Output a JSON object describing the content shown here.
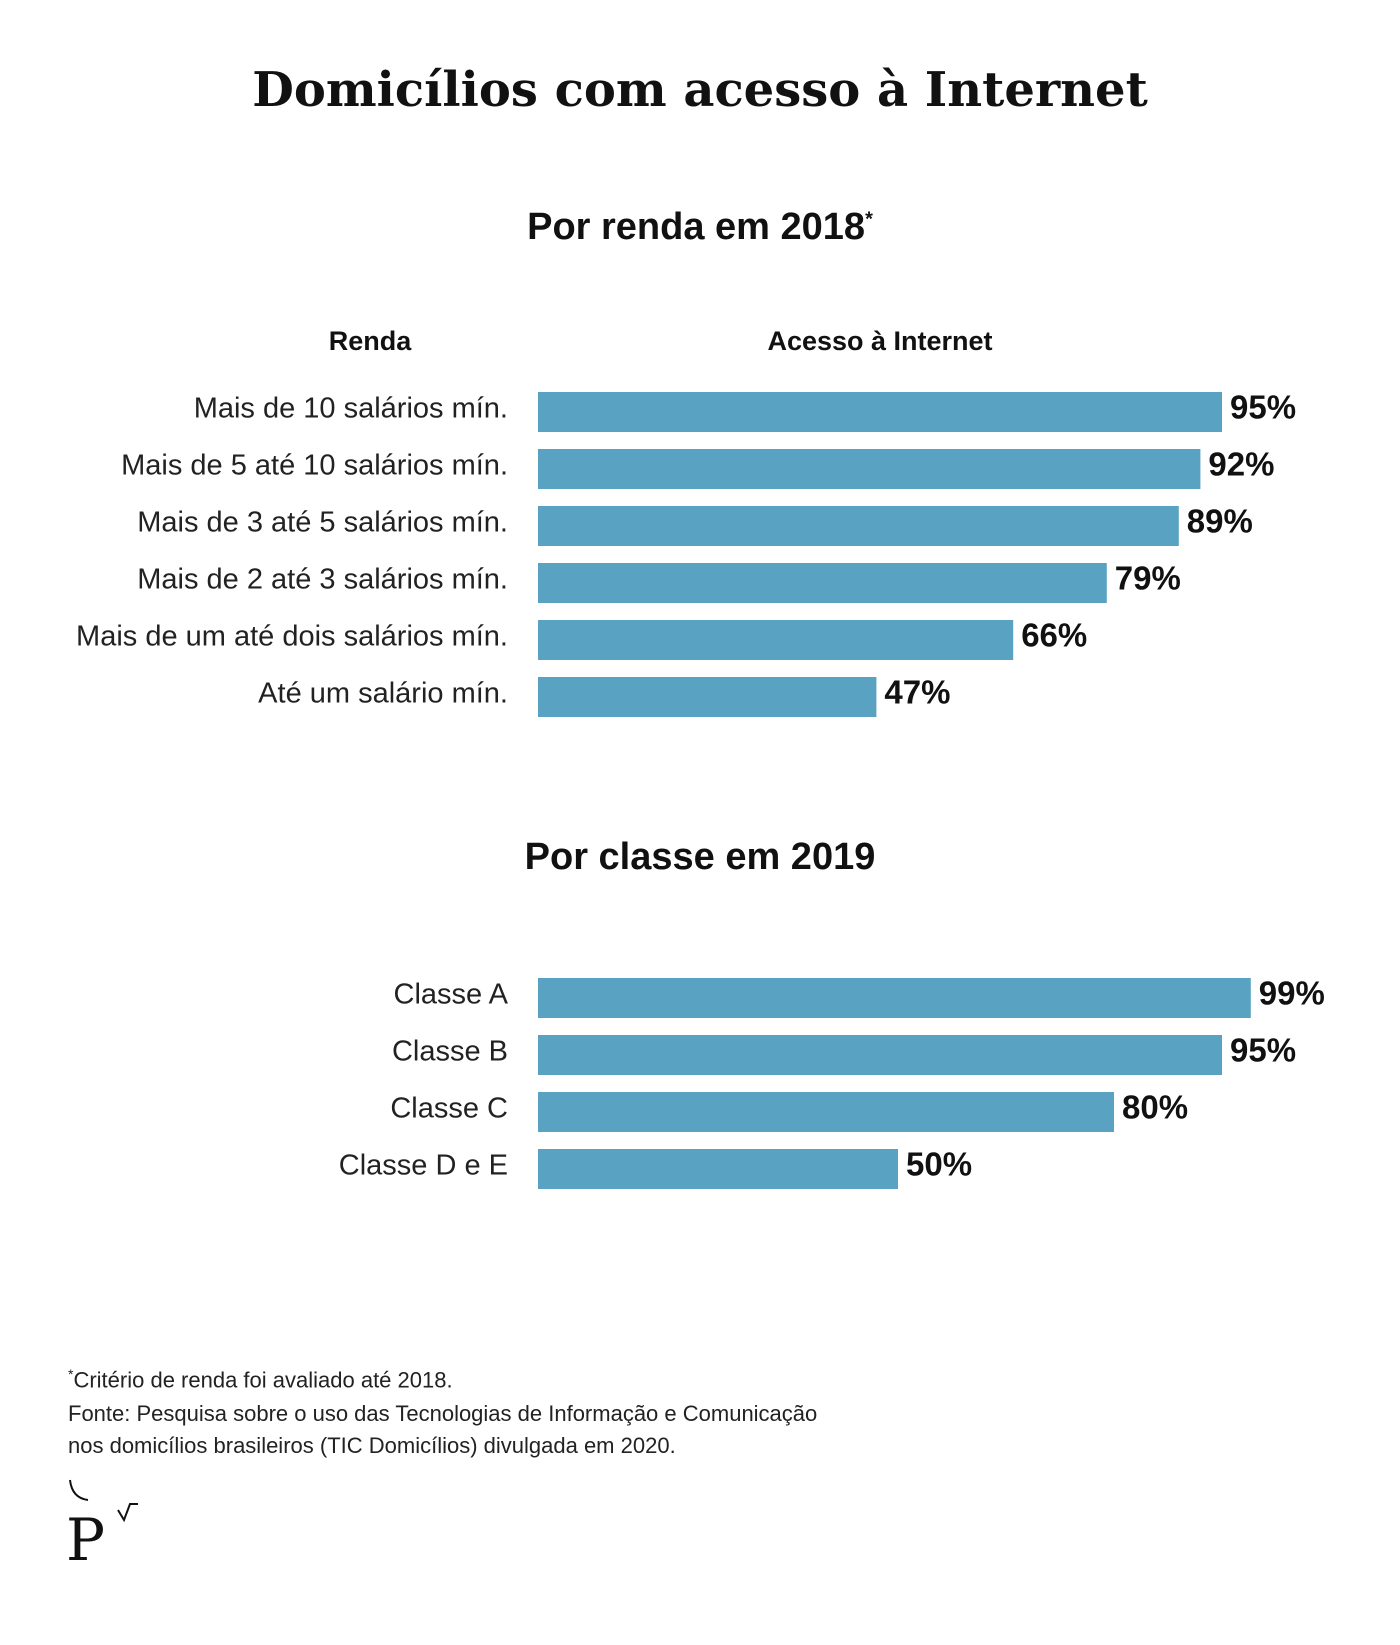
{
  "title": "Domicílios com acesso à Internet",
  "sections": [
    {
      "subtitle": "Por renda em 2018",
      "subtitle_mark": "*",
      "col_category": "Renda",
      "col_value": "Acesso à Internet"
    },
    {
      "subtitle": "Por classe em 2019",
      "subtitle_mark": "",
      "col_category": "",
      "col_value": ""
    }
  ],
  "chart_data": [
    {
      "type": "bar",
      "orientation": "horizontal",
      "title": "Por renda em 2018*",
      "xlabel": "Acesso à Internet",
      "ylabel": "Renda",
      "unit": "%",
      "categories": [
        "Mais de 10 salários mín.",
        "Mais de 5 até 10 salários mín.",
        "Mais de 3 até 5 salários mín.",
        "Mais de 2 até 3 salários mín.",
        "Mais de um até dois salários mín.",
        "Até um salário mín."
      ],
      "values": [
        95,
        92,
        89,
        79,
        66,
        47
      ],
      "value_labels": [
        "95%",
        "92%",
        "89%",
        "79%",
        "66%",
        "47%"
      ],
      "xlim": [
        0,
        100
      ],
      "grid": false,
      "bar_color": "#5aa2c2"
    },
    {
      "type": "bar",
      "orientation": "horizontal",
      "title": "Por classe em 2019",
      "unit": "%",
      "categories": [
        "Classe A",
        "Classe B",
        "Classe C",
        "Classe D e E"
      ],
      "values": [
        99,
        95,
        80,
        50
      ],
      "value_labels": [
        "99%",
        "95%",
        "80%",
        "50%"
      ],
      "xlim": [
        0,
        100
      ],
      "grid": false,
      "bar_color": "#5aa2c2"
    }
  ],
  "footnotes": {
    "criterio_mark": "*",
    "criterio": "Critério de renda foi avaliado até 2018.",
    "fonte_line1": "Fonte:  Pesquisa sobre o uso das Tecnologias de Informação e Comunicação",
    "fonte_line2": "nos domicílios brasileiros (TIC Domicílios) divulgada em 2020."
  },
  "logo": {
    "letter": "P",
    "icon": "poder360-logo-icon"
  }
}
